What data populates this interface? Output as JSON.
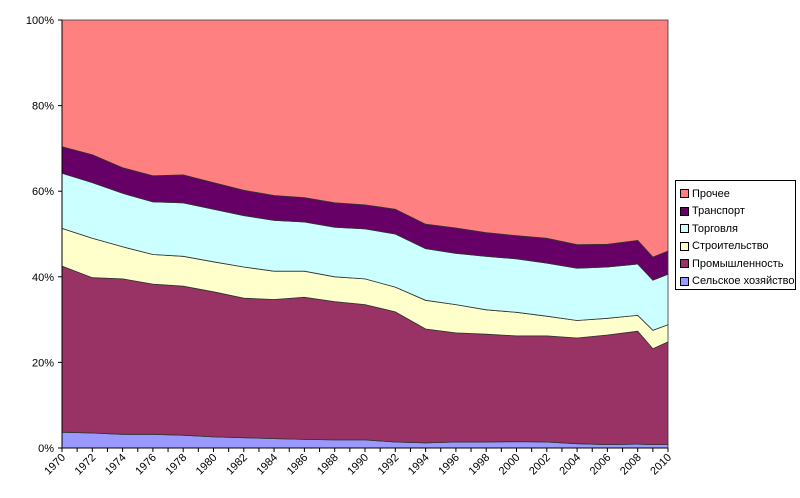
{
  "chart_data": {
    "type": "area",
    "stacking": "percent",
    "title": "",
    "xlabel": "",
    "ylabel": "",
    "ylim": [
      0,
      100
    ],
    "y_ticks": [
      "0%",
      "20%",
      "40%",
      "60%",
      "80%",
      "100%"
    ],
    "x_tick_labels": [
      "1970",
      "1972",
      "1974",
      "1976",
      "1978",
      "1980",
      "1982",
      "1984",
      "1986",
      "1988",
      "1990",
      "1992",
      "1994",
      "1996",
      "1998",
      "2000",
      "2002",
      "2004",
      "2006",
      "2008",
      "2010"
    ],
    "x": [
      1970,
      1972,
      1974,
      1976,
      1978,
      1980,
      1982,
      1984,
      1986,
      1988,
      1990,
      1992,
      1994,
      1996,
      1998,
      2000,
      2002,
      2004,
      2006,
      2008,
      2009,
      2010
    ],
    "legend_position": "right",
    "series": [
      {
        "name": "Сельское хозяйство",
        "color": "#9999FF",
        "values": [
          3.7,
          3.5,
          3.2,
          3.2,
          3.0,
          2.6,
          2.4,
          2.2,
          2.0,
          1.9,
          1.9,
          1.4,
          1.2,
          1.4,
          1.4,
          1.5,
          1.4,
          1.0,
          0.8,
          0.9,
          0.8,
          0.8
        ]
      },
      {
        "name": "Промышленность",
        "color": "#993366",
        "values": [
          38.8,
          36.3,
          36.3,
          35.1,
          34.8,
          33.9,
          32.6,
          32.5,
          33.2,
          32.3,
          31.6,
          30.4,
          26.6,
          25.5,
          25.2,
          24.7,
          24.8,
          24.7,
          25.6,
          26.4,
          22.4,
          24.0
        ]
      },
      {
        "name": "Строительство",
        "color": "#FFFFCC",
        "values": [
          8.8,
          9.2,
          7.5,
          6.9,
          7.0,
          7.0,
          7.3,
          6.6,
          6.1,
          5.8,
          6.0,
          5.8,
          6.7,
          6.6,
          5.7,
          5.5,
          4.6,
          4.1,
          3.9,
          3.7,
          4.3,
          4.0
        ]
      },
      {
        "name": "Торговля",
        "color": "#CCFFFF",
        "values": [
          12.9,
          13.0,
          12.5,
          12.3,
          12.5,
          12.3,
          12.0,
          11.9,
          11.5,
          11.6,
          11.7,
          12.4,
          12.1,
          12.0,
          12.5,
          12.5,
          12.4,
          12.2,
          12.0,
          12.0,
          11.7,
          11.8
        ]
      },
      {
        "name": "Транспорт",
        "color": "#660066",
        "values": [
          6.2,
          6.5,
          6.0,
          6.1,
          6.5,
          6.2,
          5.9,
          5.8,
          5.7,
          5.7,
          5.6,
          5.8,
          5.7,
          5.9,
          5.5,
          5.4,
          5.8,
          5.5,
          5.3,
          5.5,
          5.4,
          5.4
        ]
      },
      {
        "name": "Прочее",
        "color": "#FF8080",
        "values": [
          29.6,
          31.5,
          34.5,
          36.4,
          36.2,
          38.0,
          39.8,
          41.0,
          41.5,
          42.7,
          43.2,
          44.2,
          47.7,
          48.6,
          49.7,
          50.4,
          51.0,
          52.5,
          52.4,
          51.5,
          55.4,
          54.0
        ]
      }
    ]
  }
}
